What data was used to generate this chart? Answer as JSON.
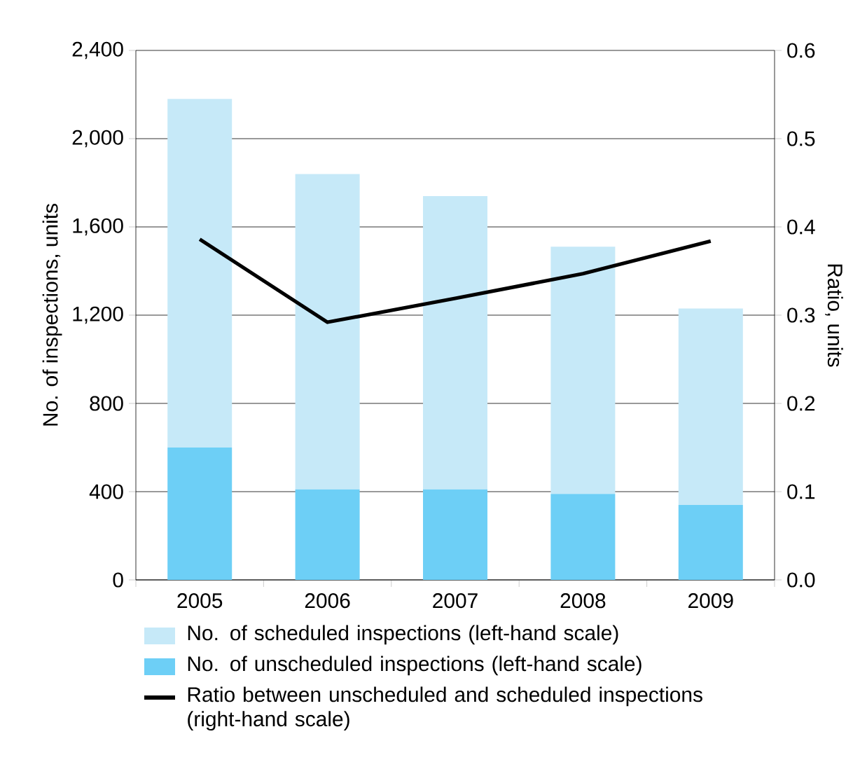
{
  "chart_data": {
    "type": "bar",
    "stacked": true,
    "categories": [
      "2005",
      "2006",
      "2007",
      "2008",
      "2009"
    ],
    "series": [
      {
        "name": "No. of unscheduled inspections (left-hand scale)",
        "color": "#6dcff6",
        "values": [
          600,
          410,
          410,
          390,
          340
        ]
      },
      {
        "name": "No. of scheduled inspections (left-hand scale)",
        "color": "#c6e9f8",
        "values": [
          1580,
          1430,
          1330,
          1120,
          890
        ]
      },
      {
        "name": "Ratio between unscheduled and scheduled inspections (right-hand scale)",
        "type": "line",
        "axis": "y2",
        "color": "#000000",
        "values": [
          0.386,
          0.292,
          0.319,
          0.347,
          0.384
        ]
      }
    ],
    "ylabel": "No. of inspections, units",
    "y2label": "Ratio, units",
    "ylim": [
      0,
      2400
    ],
    "yticks": [
      0,
      400,
      800,
      {
        "value": 1200,
        "label": "1,200"
      },
      {
        "value": 1600,
        "label": "1,600"
      },
      {
        "value": 2000,
        "label": "2,000"
      },
      {
        "value": 2400,
        "label": "2,400"
      }
    ],
    "y2lim": [
      0,
      0.6
    ],
    "y2ticks": [
      {
        "value": 0,
        "label": "0.0"
      },
      0.1,
      0.2,
      0.3,
      0.4,
      0.5,
      0.6
    ],
    "grid": "y",
    "legend": "bottom"
  }
}
